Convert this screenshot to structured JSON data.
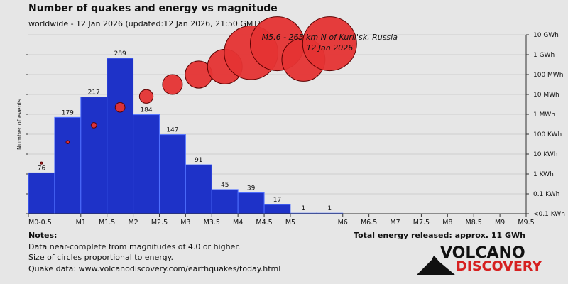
{
  "title": "Number of quakes and energy vs magnitude",
  "subtitle": "worldwide - 12 Jan 2026 (updated:12 Jan 2026, 21:50 GMT)",
  "colors": {
    "bar_fill": "#1e32c8",
    "bar_stroke": "#5070ff",
    "circle_fill": "#e53333",
    "circle_stroke": "#5a0000",
    "background": "#e6e6e6",
    "logo_red": "#d62020"
  },
  "chart_data": {
    "type": "bar",
    "ylabel": "Number of events",
    "categories": [
      "M0-0.5",
      "M0.5-1",
      "M1-1.5",
      "M1.5-2",
      "M2-2.5",
      "M2.5-3",
      "M3-3.5",
      "M3.5-4",
      "M4-4.5",
      "M4.5-5",
      "M5-5.5",
      "M5.5-6"
    ],
    "bar_bins": [
      [
        0,
        0.5
      ],
      [
        0.5,
        1
      ],
      [
        1,
        1.5
      ],
      [
        1.5,
        2
      ],
      [
        2,
        2.5
      ],
      [
        2.5,
        3
      ],
      [
        3,
        3.5
      ],
      [
        3.5,
        4
      ],
      [
        4,
        4.5
      ],
      [
        4.5,
        5
      ],
      [
        5,
        5.5
      ],
      [
        5.5,
        6
      ]
    ],
    "values": [
      76,
      179,
      217,
      289,
      184,
      147,
      91,
      45,
      39,
      17,
      1,
      1
    ],
    "xlim": [
      0,
      9.5
    ],
    "ylim": [
      0,
      289
    ],
    "x_tick_values": [
      0,
      1,
      1.5,
      2,
      2.5,
      3,
      3.5,
      4,
      4.5,
      5,
      6,
      6.5,
      7,
      7.5,
      8,
      8.5,
      9,
      9.5
    ],
    "x_tick_labels": [
      "M0-0.5",
      "M1",
      "M1.5",
      "M2",
      "M2.5",
      "M3",
      "M3.5",
      "M4",
      "M4.5",
      "M5",
      "M6",
      "M6.5",
      "M7",
      "M7.5",
      "M8",
      "M8.5",
      "M9",
      "M9.5"
    ],
    "right_axis": {
      "label_note": "energy (log scale)",
      "tick_labels": [
        "<0.1 KWh",
        "0.1 KWh",
        "1 KWh",
        "10 KWh",
        "100 KWh",
        "1 MWh",
        "10 MWh",
        "100 MWh",
        "1 GWh",
        "10 GWh"
      ]
    },
    "energy_series": {
      "name": "Energy released",
      "note": "Size of circles proportional to energy",
      "points": [
        {
          "x": 0.25,
          "level": 2.55
        },
        {
          "x": 0.75,
          "level": 3.6
        },
        {
          "x": 1.25,
          "level": 4.45
        },
        {
          "x": 1.75,
          "level": 5.35
        },
        {
          "x": 2.25,
          "level": 5.9
        },
        {
          "x": 2.75,
          "level": 6.5
        },
        {
          "x": 3.25,
          "level": 7.0
        },
        {
          "x": 3.75,
          "level": 7.4
        },
        {
          "x": 4.25,
          "level": 8.1
        },
        {
          "x": 4.75,
          "level": 8.55
        },
        {
          "x": 5.25,
          "level": 7.75
        },
        {
          "x": 5.75,
          "level": 8.55
        }
      ]
    },
    "annotation": {
      "line1": "M5.6 - 265 km N of Kuril'sk, Russia",
      "line2": "12 Jan 2026",
      "x": 5.75
    }
  },
  "notes": {
    "heading": "Notes:",
    "line1": "Data near-complete from magnitudes of 4.0 or higher.",
    "line2": "Size of circles proportional to energy.",
    "line3": "Quake data: www.volcanodiscovery.com/earthquakes/today.html"
  },
  "total_energy": "Total energy released: approx. 11 GWh",
  "logo": {
    "word1": "VOLCANO",
    "word2": "DISCOVERY"
  }
}
